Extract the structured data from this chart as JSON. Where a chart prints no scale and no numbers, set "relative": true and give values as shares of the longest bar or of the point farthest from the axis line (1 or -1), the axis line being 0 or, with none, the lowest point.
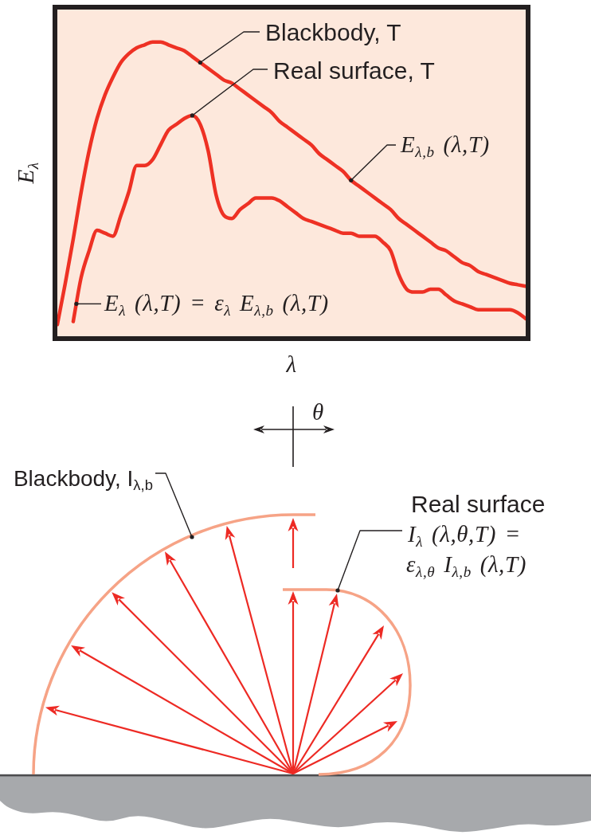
{
  "chart_data": [
    {
      "type": "line",
      "relative": true,
      "xlabel": "λ",
      "ylabel": "E$_{λ}$",
      "categories": [
        null,
        null,
        null,
        null,
        null,
        null,
        null,
        null,
        null,
        null,
        null,
        null,
        null,
        null,
        null,
        null,
        null,
        null,
        null,
        null,
        null,
        null,
        null,
        null,
        null,
        null,
        null,
        null,
        null,
        null,
        null,
        null,
        null,
        null,
        null,
        null,
        null,
        null,
        null,
        null,
        null,
        null,
        null,
        null,
        null,
        null,
        null,
        null,
        null,
        null,
        null,
        null,
        null,
        null,
        null,
        null,
        null,
        null,
        null,
        null
      ],
      "series": [
        {
          "name": "Blackbody, T",
          "color": "#ee3124",
          "values": [
            0.04,
            0.18,
            0.33,
            0.49,
            0.63,
            0.74,
            0.82,
            0.88,
            0.93,
            0.96,
            0.98,
            0.99,
            1,
            1,
            0.99,
            0.98,
            0.97,
            0.95,
            0.93,
            0.91,
            0.89,
            0.87,
            0.86,
            0.84,
            0.82,
            0.8,
            0.78,
            0.76,
            0.73,
            0.71,
            0.69,
            0.67,
            0.65,
            0.62,
            0.6,
            0.58,
            0.56,
            0.53,
            0.51,
            0.49,
            0.47,
            0.45,
            0.43,
            0.4,
            0.38,
            0.36,
            0.34,
            0.32,
            0.3,
            0.29,
            0.27,
            0.25,
            0.24,
            0.22,
            0.21,
            0.2,
            0.19,
            0.18,
            0.175,
            0.17
          ]
        },
        {
          "name": "Real surface, T",
          "color": "#ee3124",
          "values": [
            null,
            null,
            0.05,
            0.2,
            0.29,
            0.36,
            0.35,
            0.34,
            0.41,
            0.49,
            0.58,
            0.58,
            0.6,
            0.65,
            0.7,
            0.72,
            0.74,
            0.75,
            0.72,
            0.63,
            0.48,
            0.41,
            0.4,
            0.43,
            0.45,
            0.47,
            0.47,
            0.47,
            0.46,
            0.44,
            0.42,
            0.4,
            0.39,
            0.38,
            0.37,
            0.36,
            0.35,
            0.35,
            0.34,
            0.34,
            0.34,
            0.32,
            0.29,
            0.21,
            0.16,
            0.15,
            0.15,
            0.16,
            0.16,
            0.14,
            0.12,
            0.11,
            0.1,
            0.09,
            0.09,
            0.09,
            0.09,
            0.09,
            0.08,
            0.06
          ]
        }
      ],
      "annotations": [
        "E$_{λ,b}$ (λ,T)",
        "E$_{λ}$ (λ,T) = ε$_{λ}$ E$_{λ,b}$ (λ,T)"
      ]
    },
    {
      "type": "other",
      "annotations": [
        "θ",
        "Blackbody, I$_{λ,b}$",
        "Real surface",
        "I$_{λ}$ (λ,θ,T) =",
        "ε$_{λ,θ}$ I$_{λ,b}$ (λ,T)"
      ]
    }
  ]
}
